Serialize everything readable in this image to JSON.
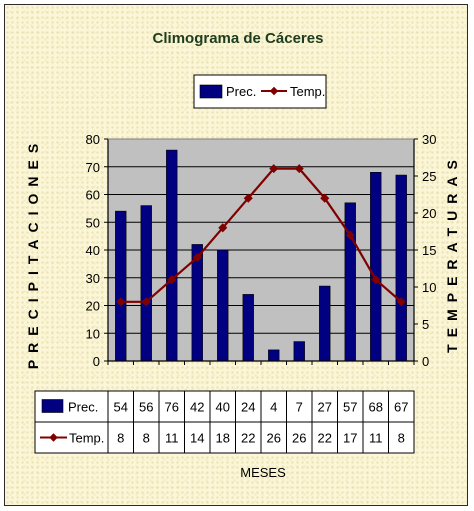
{
  "chart_data": {
    "type": "bar",
    "title": "Climograma de Cáceres",
    "xlabel": "MESES",
    "ylabel": "PRECIPITACIONES",
    "y2label": "TEMPERATURAS",
    "ylim": [
      0,
      80
    ],
    "y2lim": [
      0,
      30
    ],
    "yticks": [
      "0",
      "10",
      "20",
      "30",
      "40",
      "50",
      "60",
      "70",
      "80"
    ],
    "y2ticks": [
      "0",
      "5",
      "10",
      "15",
      "20",
      "25",
      "30"
    ],
    "legend_position": "top",
    "plot_background": "#c0c0c0",
    "data_table": true,
    "series": [
      {
        "name": "Prec.",
        "type": "bar",
        "axis": "left",
        "color": "#000080",
        "values": [
          54,
          56,
          76,
          42,
          40,
          24,
          4,
          7,
          27,
          57,
          68,
          67
        ],
        "labels": [
          "54",
          "56",
          "76",
          "42",
          "40",
          "24",
          "4",
          "7",
          "27",
          "57",
          "68",
          "67"
        ]
      },
      {
        "name": "Temp.",
        "type": "line",
        "axis": "right",
        "color": "#800000",
        "values": [
          8,
          8,
          11,
          14,
          18,
          22,
          26,
          26,
          22,
          17,
          11,
          8
        ],
        "labels": [
          "8",
          "8",
          "11",
          "14",
          "18",
          "22",
          "26",
          "26",
          "22",
          "17",
          "11",
          "8"
        ]
      }
    ]
  }
}
